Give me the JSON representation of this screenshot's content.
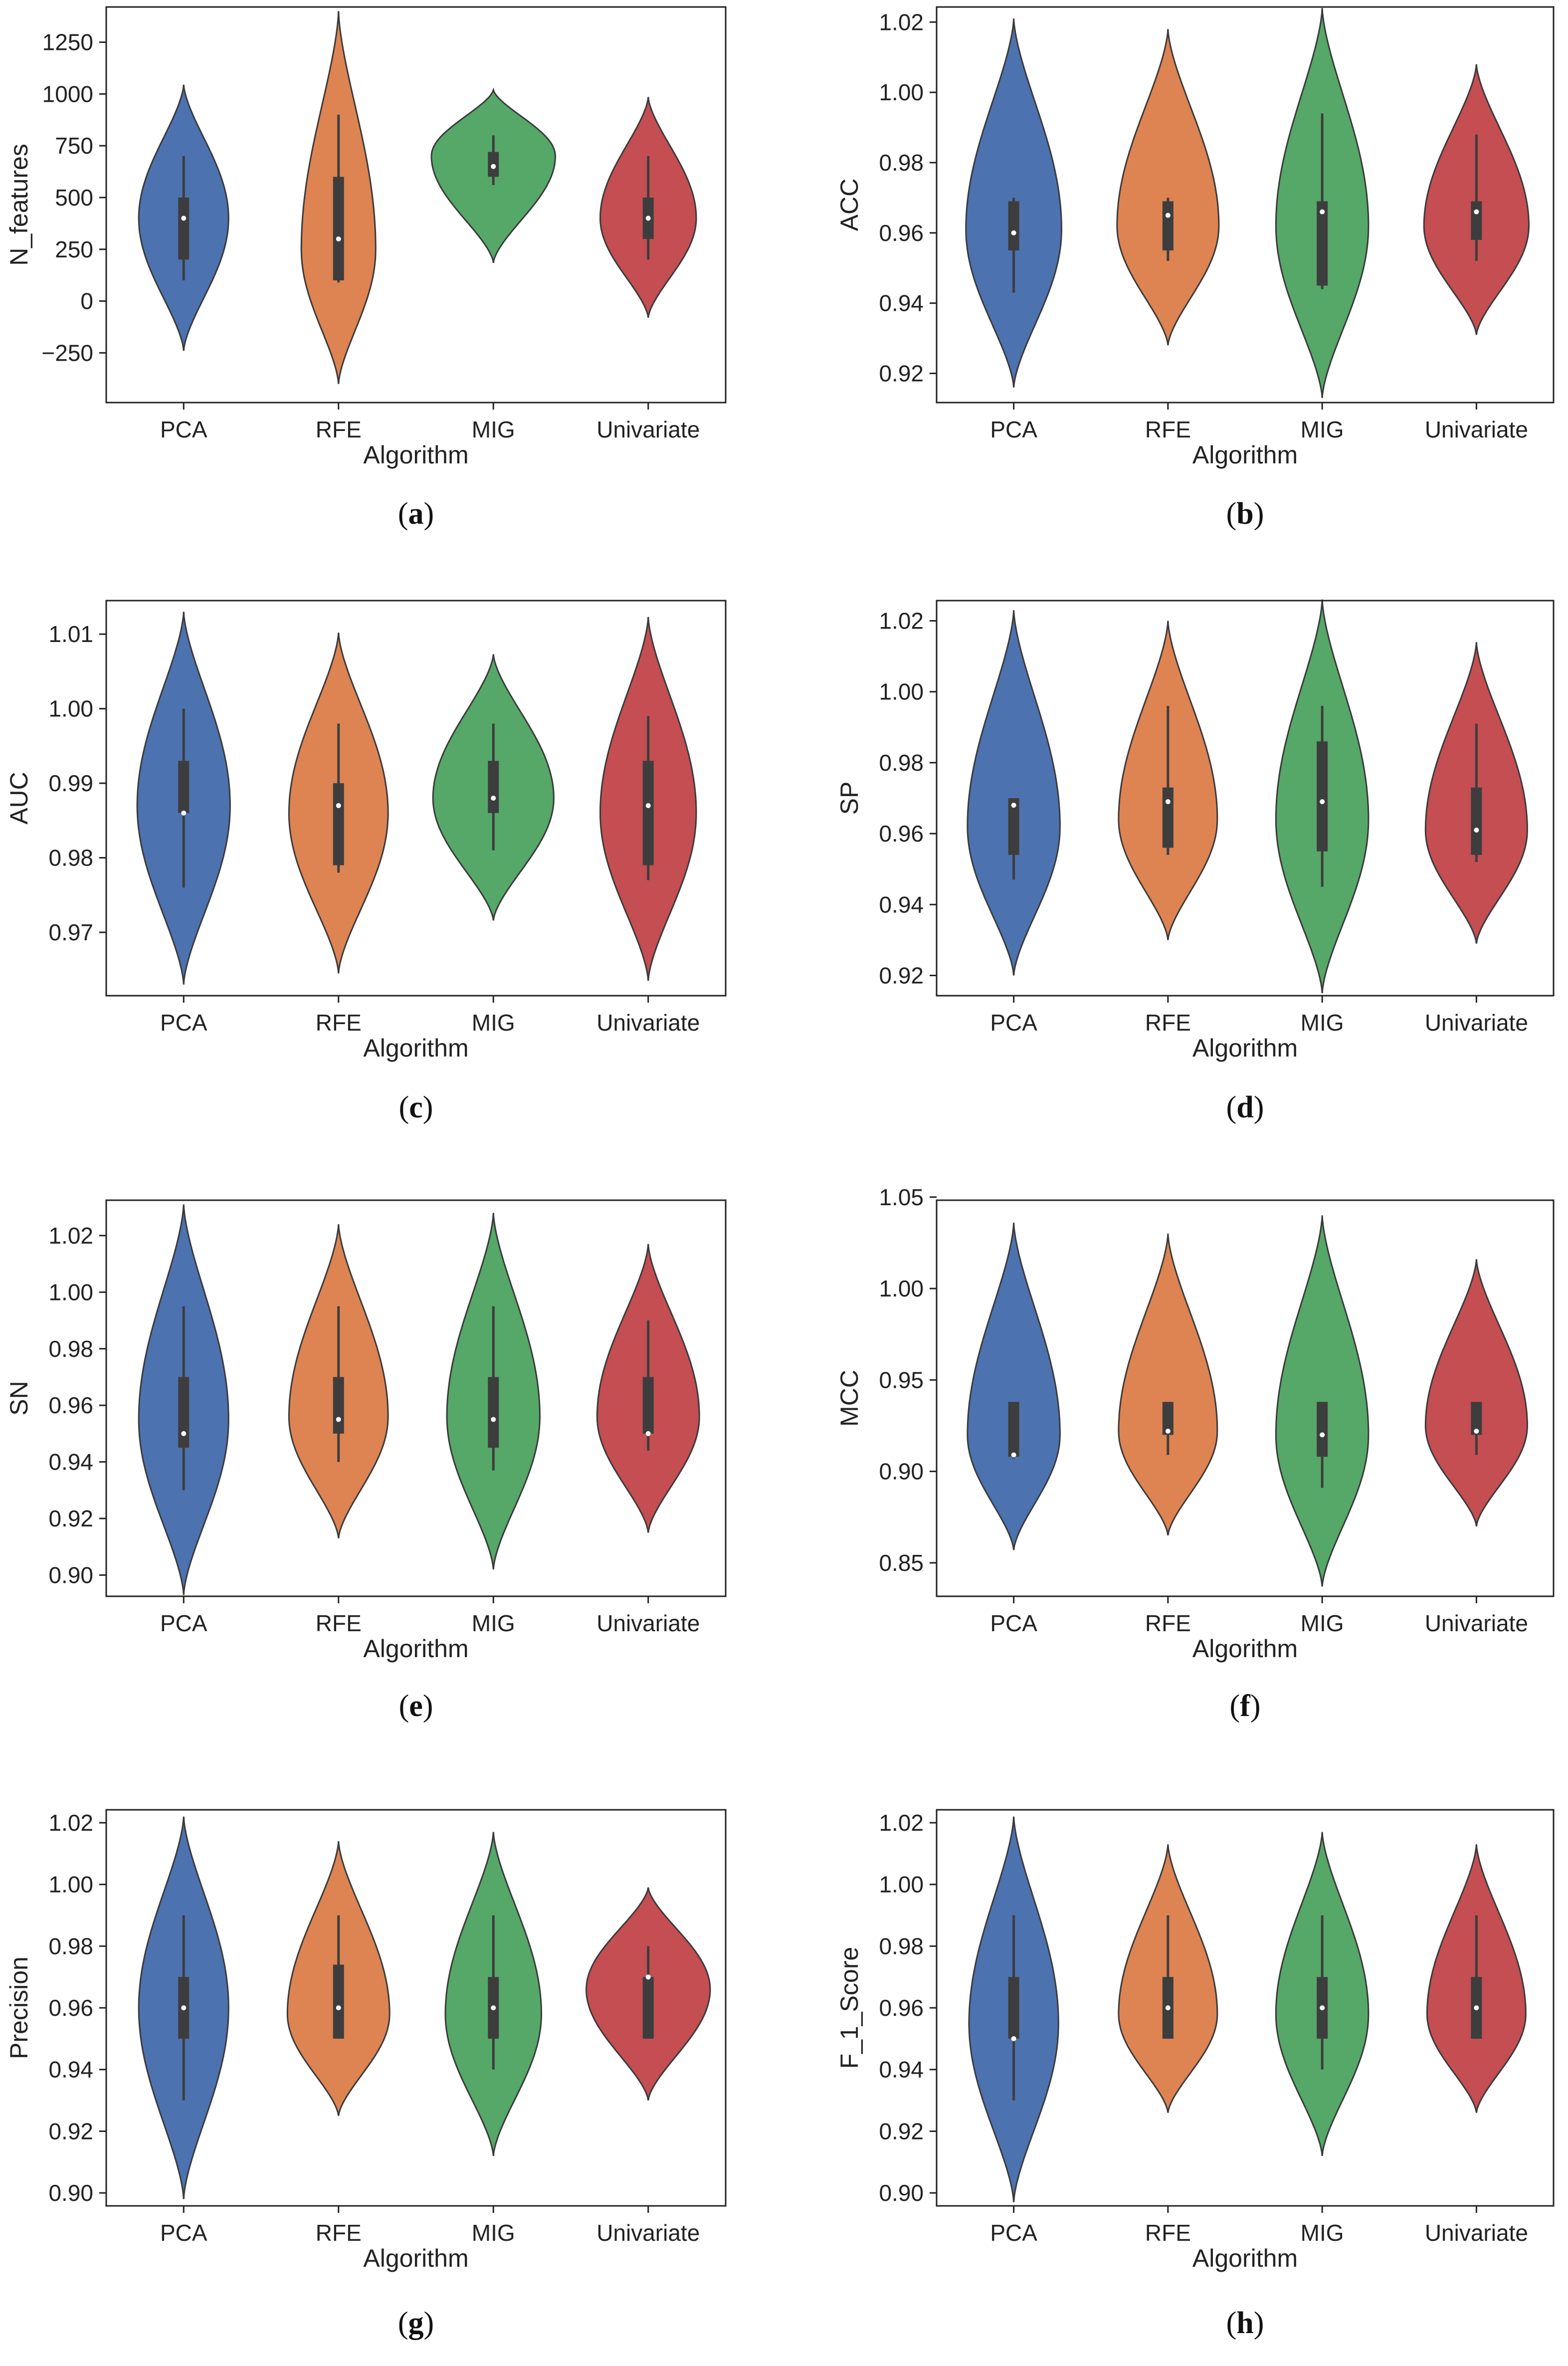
{
  "figure_style": {
    "colors": {
      "PCA": "#4c72b0",
      "RFE": "#dd8452",
      "MIG": "#55a868",
      "Univariate": "#c44e52"
    },
    "outline": "#3a3a3a",
    "box": "#3d3d3d"
  },
  "chart_data": [
    {
      "type": "violin",
      "caption": {
        "open": "(",
        "letter": "a",
        "close": ")"
      },
      "xlabel": "Algorithm",
      "ylabel": "N_features",
      "categories": [
        "PCA",
        "RFE",
        "MIG",
        "Univariate"
      ],
      "ylim": [
        -490,
        1420
      ],
      "yticks": [
        -250,
        0,
        250,
        500,
        750,
        1000,
        1250
      ],
      "ytick_labels": [
        "−250",
        "0",
        "250",
        "500",
        "750",
        "1000",
        "1250"
      ],
      "violins": [
        {
          "category": "PCA",
          "min": -240,
          "max": 1045,
          "q1": 200,
          "median": 400,
          "q3": 500,
          "wlo": 100,
          "whi": 700,
          "mode": 400,
          "hw": 0.29
        },
        {
          "category": "RFE",
          "min": -400,
          "max": 1400,
          "q1": 100,
          "median": 300,
          "q3": 600,
          "wlo": 90,
          "whi": 900,
          "mode": 250,
          "hw": 0.24
        },
        {
          "category": "MIG",
          "min": 185,
          "max": 1020,
          "q1": 600,
          "median": 650,
          "q3": 720,
          "wlo": 560,
          "whi": 800,
          "mode": 700,
          "hw": 0.4
        },
        {
          "category": "Univariate",
          "min": -80,
          "max": 985,
          "q1": 300,
          "median": 400,
          "q3": 500,
          "wlo": 200,
          "whi": 700,
          "mode": 400,
          "hw": 0.31
        }
      ]
    },
    {
      "type": "violin",
      "caption": {
        "open": "(",
        "letter": "b",
        "close": ")"
      },
      "xlabel": "Algorithm",
      "ylabel": "ACC",
      "categories": [
        "PCA",
        "RFE",
        "MIG",
        "Univariate"
      ],
      "ylim": [
        0.9117,
        1.0243
      ],
      "yticks": [
        0.92,
        0.94,
        0.96,
        0.98,
        1.0,
        1.02
      ],
      "ytick_labels": [
        "0.92",
        "0.94",
        "0.96",
        "0.98",
        "1.00",
        "1.02"
      ],
      "violins": [
        {
          "category": "PCA",
          "min": 0.916,
          "max": 1.021,
          "q1": 0.955,
          "median": 0.96,
          "q3": 0.969,
          "wlo": 0.943,
          "whi": 0.97,
          "mode": 0.961,
          "hw": 0.31
        },
        {
          "category": "RFE",
          "min": 0.928,
          "max": 1.018,
          "q1": 0.955,
          "median": 0.965,
          "q3": 0.969,
          "wlo": 0.952,
          "whi": 0.97,
          "mode": 0.962,
          "hw": 0.33
        },
        {
          "category": "MIG",
          "min": 0.913,
          "max": 1.024,
          "q1": 0.945,
          "median": 0.966,
          "q3": 0.969,
          "wlo": 0.944,
          "whi": 0.994,
          "mode": 0.962,
          "hw": 0.3
        },
        {
          "category": "Univariate",
          "min": 0.931,
          "max": 1.008,
          "q1": 0.958,
          "median": 0.966,
          "q3": 0.969,
          "wlo": 0.952,
          "whi": 0.988,
          "mode": 0.962,
          "hw": 0.34
        }
      ]
    },
    {
      "type": "violin",
      "caption": {
        "open": "(",
        "letter": "c",
        "close": ")"
      },
      "xlabel": "Algorithm",
      "ylabel": "AUC",
      "categories": [
        "PCA",
        "RFE",
        "MIG",
        "Univariate"
      ],
      "ylim": [
        0.9615,
        1.0145
      ],
      "yticks": [
        0.97,
        0.98,
        0.99,
        1.0,
        1.01
      ],
      "ytick_labels": [
        "0.97",
        "0.98",
        "0.99",
        "1.00",
        "1.01"
      ],
      "violins": [
        {
          "category": "PCA",
          "min": 0.963,
          "max": 1.013,
          "q1": 0.986,
          "median": 0.986,
          "q3": 0.993,
          "wlo": 0.976,
          "whi": 1.0,
          "mode": 0.987,
          "hw": 0.3
        },
        {
          "category": "RFE",
          "min": 0.9645,
          "max": 1.0102,
          "q1": 0.979,
          "median": 0.987,
          "q3": 0.99,
          "wlo": 0.978,
          "whi": 0.998,
          "mode": 0.986,
          "hw": 0.32
        },
        {
          "category": "MIG",
          "min": 0.9716,
          "max": 1.0073,
          "q1": 0.986,
          "median": 0.988,
          "q3": 0.993,
          "wlo": 0.981,
          "whi": 0.998,
          "mode": 0.988,
          "hw": 0.39
        },
        {
          "category": "Univariate",
          "min": 0.9635,
          "max": 1.0123,
          "q1": 0.979,
          "median": 0.987,
          "q3": 0.993,
          "wlo": 0.977,
          "whi": 0.999,
          "mode": 0.986,
          "hw": 0.31
        }
      ]
    },
    {
      "type": "violin",
      "caption": {
        "open": "(",
        "letter": "d",
        "close": ")"
      },
      "xlabel": "Algorithm",
      "ylabel": "SP",
      "categories": [
        "PCA",
        "RFE",
        "MIG",
        "Univariate"
      ],
      "ylim": [
        0.9143,
        1.0257
      ],
      "yticks": [
        0.92,
        0.94,
        0.96,
        0.98,
        1.0,
        1.02
      ],
      "ytick_labels": [
        "0.92",
        "0.94",
        "0.96",
        "0.98",
        "1.00",
        "1.02"
      ],
      "violins": [
        {
          "category": "PCA",
          "min": 0.92,
          "max": 1.023,
          "q1": 0.954,
          "median": 0.968,
          "q3": 0.97,
          "wlo": 0.947,
          "whi": 0.97,
          "mode": 0.962,
          "hw": 0.3
        },
        {
          "category": "RFE",
          "min": 0.93,
          "max": 1.02,
          "q1": 0.956,
          "median": 0.969,
          "q3": 0.973,
          "wlo": 0.954,
          "whi": 0.996,
          "mode": 0.964,
          "hw": 0.32
        },
        {
          "category": "MIG",
          "min": 0.915,
          "max": 1.026,
          "q1": 0.955,
          "median": 0.969,
          "q3": 0.986,
          "wlo": 0.945,
          "whi": 0.996,
          "mode": 0.964,
          "hw": 0.3
        },
        {
          "category": "Univariate",
          "min": 0.929,
          "max": 1.014,
          "q1": 0.954,
          "median": 0.961,
          "q3": 0.973,
          "wlo": 0.952,
          "whi": 0.991,
          "mode": 0.961,
          "hw": 0.33
        }
      ]
    },
    {
      "type": "violin",
      "caption": {
        "open": "(",
        "letter": "e",
        "close": ")"
      },
      "xlabel": "Algorithm",
      "ylabel": "SN",
      "categories": [
        "PCA",
        "RFE",
        "MIG",
        "Univariate"
      ],
      "ylim": [
        0.8925,
        1.0325
      ],
      "yticks": [
        0.9,
        0.92,
        0.94,
        0.96,
        0.98,
        1.0,
        1.02
      ],
      "ytick_labels": [
        "0.90",
        "0.92",
        "0.94",
        "0.96",
        "0.98",
        "1.00",
        "1.02"
      ],
      "violins": [
        {
          "category": "PCA",
          "min": 0.893,
          "max": 1.031,
          "q1": 0.945,
          "median": 0.95,
          "q3": 0.97,
          "wlo": 0.93,
          "whi": 0.995,
          "mode": 0.955,
          "hw": 0.29
        },
        {
          "category": "RFE",
          "min": 0.913,
          "max": 1.024,
          "q1": 0.95,
          "median": 0.955,
          "q3": 0.97,
          "wlo": 0.94,
          "whi": 0.995,
          "mode": 0.956,
          "hw": 0.32
        },
        {
          "category": "MIG",
          "min": 0.902,
          "max": 1.028,
          "q1": 0.945,
          "median": 0.955,
          "q3": 0.97,
          "wlo": 0.937,
          "whi": 0.995,
          "mode": 0.956,
          "hw": 0.3
        },
        {
          "category": "Univariate",
          "min": 0.915,
          "max": 1.017,
          "q1": 0.95,
          "median": 0.95,
          "q3": 0.97,
          "wlo": 0.944,
          "whi": 0.99,
          "mode": 0.956,
          "hw": 0.33
        }
      ]
    },
    {
      "type": "violin",
      "caption": {
        "open": "(",
        "letter": "f",
        "close": ")"
      },
      "xlabel": "Algorithm",
      "ylabel": "MCC",
      "categories": [
        "PCA",
        "RFE",
        "MIG",
        "Univariate"
      ],
      "ylim": [
        0.8317,
        1.0483
      ],
      "yticks": [
        0.85,
        0.9,
        0.95,
        1.0,
        1.05
      ],
      "ytick_labels": [
        "0.85",
        "0.90",
        "0.95",
        "1.00",
        "1.05"
      ],
      "violins": [
        {
          "category": "PCA",
          "min": 0.857,
          "max": 1.036,
          "q1": 0.908,
          "median": 0.909,
          "q3": 0.938,
          "wlo": 0.907,
          "whi": 0.938,
          "mode": 0.92,
          "hw": 0.3
        },
        {
          "category": "RFE",
          "min": 0.865,
          "max": 1.03,
          "q1": 0.92,
          "median": 0.922,
          "q3": 0.938,
          "wlo": 0.909,
          "whi": 0.938,
          "mode": 0.922,
          "hw": 0.32
        },
        {
          "category": "MIG",
          "min": 0.837,
          "max": 1.04,
          "q1": 0.908,
          "median": 0.92,
          "q3": 0.938,
          "wlo": 0.891,
          "whi": 0.938,
          "mode": 0.92,
          "hw": 0.3
        },
        {
          "category": "Univariate",
          "min": 0.87,
          "max": 1.016,
          "q1": 0.92,
          "median": 0.922,
          "q3": 0.938,
          "wlo": 0.909,
          "whi": 0.938,
          "mode": 0.925,
          "hw": 0.33
        }
      ]
    },
    {
      "type": "violin",
      "caption": {
        "open": "(",
        "letter": "g",
        "close": ")"
      },
      "xlabel": "Algorithm",
      "ylabel": "Precision",
      "categories": [
        "PCA",
        "RFE",
        "MIG",
        "Univariate"
      ],
      "ylim": [
        0.8958,
        1.0242
      ],
      "yticks": [
        0.9,
        0.92,
        0.94,
        0.96,
        0.98,
        1.0,
        1.02
      ],
      "ytick_labels": [
        "0.90",
        "0.92",
        "0.94",
        "0.96",
        "0.98",
        "1.00",
        "1.02"
      ],
      "violins": [
        {
          "category": "PCA",
          "min": 0.898,
          "max": 1.022,
          "q1": 0.95,
          "median": 0.96,
          "q3": 0.97,
          "wlo": 0.93,
          "whi": 0.99,
          "mode": 0.96,
          "hw": 0.29
        },
        {
          "category": "RFE",
          "min": 0.925,
          "max": 1.014,
          "q1": 0.95,
          "median": 0.96,
          "q3": 0.974,
          "wlo": 0.95,
          "whi": 0.99,
          "mode": 0.958,
          "hw": 0.33
        },
        {
          "category": "MIG",
          "min": 0.912,
          "max": 1.017,
          "q1": 0.95,
          "median": 0.96,
          "q3": 0.97,
          "wlo": 0.94,
          "whi": 0.99,
          "mode": 0.958,
          "hw": 0.31
        },
        {
          "category": "Univariate",
          "min": 0.93,
          "max": 0.999,
          "q1": 0.95,
          "median": 0.97,
          "q3": 0.97,
          "wlo": 0.95,
          "whi": 0.98,
          "mode": 0.966,
          "hw": 0.4
        }
      ]
    },
    {
      "type": "violin",
      "caption": {
        "open": "(",
        "letter": "h",
        "close": ")"
      },
      "xlabel": "Algorithm",
      "ylabel": "F_1_Score",
      "categories": [
        "PCA",
        "RFE",
        "MIG",
        "Univariate"
      ],
      "ylim": [
        0.8958,
        1.0242
      ],
      "yticks": [
        0.9,
        0.92,
        0.94,
        0.96,
        0.98,
        1.0,
        1.02
      ],
      "ytick_labels": [
        "0.90",
        "0.92",
        "0.94",
        "0.96",
        "0.98",
        "1.00",
        "1.02"
      ],
      "violins": [
        {
          "category": "PCA",
          "min": 0.897,
          "max": 1.022,
          "q1": 0.95,
          "median": 0.95,
          "q3": 0.97,
          "wlo": 0.93,
          "whi": 0.99,
          "mode": 0.955,
          "hw": 0.29
        },
        {
          "category": "RFE",
          "min": 0.926,
          "max": 1.013,
          "q1": 0.95,
          "median": 0.96,
          "q3": 0.97,
          "wlo": 0.95,
          "whi": 0.99,
          "mode": 0.958,
          "hw": 0.32
        },
        {
          "category": "MIG",
          "min": 0.912,
          "max": 1.017,
          "q1": 0.95,
          "median": 0.96,
          "q3": 0.97,
          "wlo": 0.94,
          "whi": 0.99,
          "mode": 0.958,
          "hw": 0.3
        },
        {
          "category": "Univariate",
          "min": 0.926,
          "max": 1.013,
          "q1": 0.95,
          "median": 0.96,
          "q3": 0.97,
          "wlo": 0.95,
          "whi": 0.99,
          "mode": 0.958,
          "hw": 0.32
        }
      ]
    }
  ]
}
